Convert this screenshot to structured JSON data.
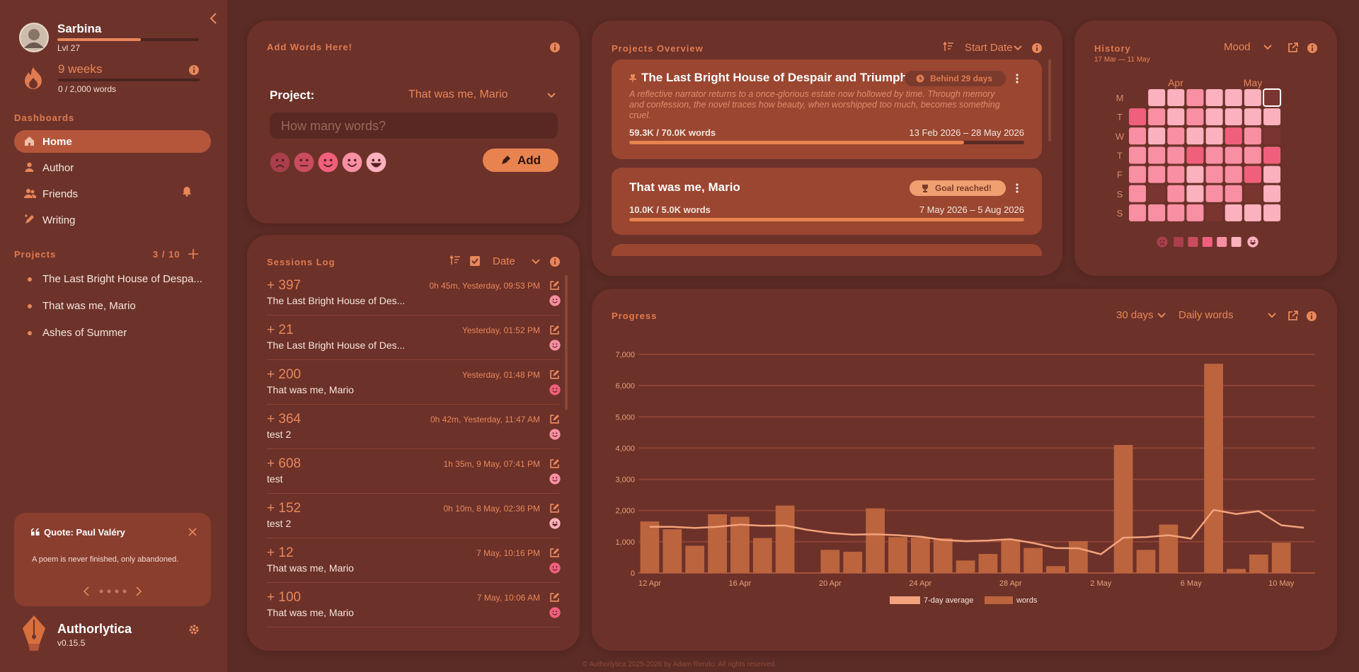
{
  "sidebar": {
    "user": {
      "name": "Sarbina",
      "level": "Lvl 27",
      "xp_progress": 59
    },
    "streak": {
      "label": "9 weeks",
      "words": "0 / 2,000 words",
      "progress": 0
    },
    "dashboards_heading": "Dashboards",
    "nav": [
      "Home",
      "Author",
      "Friends",
      "Writing"
    ],
    "projects_heading": "Projects",
    "projects_count": "3 / 10",
    "projects": [
      "The Last Bright House of Despa...",
      "That was me, Mario",
      "Ashes of Summer"
    ],
    "quote": {
      "title": "Quote: Paul Valéry",
      "text": "A poem is never finished, only abandoned."
    },
    "app": {
      "name": "Authorlytica",
      "version": "v0.15.5"
    }
  },
  "add_words": {
    "title": "Add Words Here!",
    "project_label": "Project:",
    "project": "That was me, Mario",
    "placeholder": "How many words?",
    "button": "Add"
  },
  "sessions": {
    "title": "Sessions Log",
    "sort": "Date",
    "items": [
      {
        "amount": "+ 397",
        "time": "0h 45m, Yesterday, 09:53 PM",
        "project": "The Last Bright House of Des...",
        "mood": 4
      },
      {
        "amount": "+ 21",
        "time": "Yesterday, 01:52 PM",
        "project": "The Last Bright House of Des...",
        "mood": 4
      },
      {
        "amount": "+ 200",
        "time": "Yesterday, 01:48 PM",
        "project": "That was me, Mario",
        "mood": 3
      },
      {
        "amount": "+ 364",
        "time": "0h 42m, Yesterday, 11:47 AM",
        "project": "test 2",
        "mood": 4
      },
      {
        "amount": "+ 608",
        "time": "1h 35m, 9 May, 07:41 PM",
        "project": "test",
        "mood": 4
      },
      {
        "amount": "+ 152",
        "time": "0h 10m, 8 May, 02:36 PM",
        "project": "test 2",
        "mood": 5
      },
      {
        "amount": "+ 12",
        "time": "7 May, 10:16 PM",
        "project": "That was me, Mario",
        "mood": 3
      },
      {
        "amount": "+ 100",
        "time": "7 May, 10:06 AM",
        "project": "That was me, Mario",
        "mood": 3
      }
    ]
  },
  "projects_overview": {
    "title": "Projects Overview",
    "sort": "Start Date",
    "cards": [
      {
        "title": "The Last Bright House of Despair and Triumph",
        "badge": "Behind 29 days",
        "description": "A reflective narrator returns to a once-glorious estate now hollowed by time. Through memory and confession, the novel traces how beauty, when worshipped too much, becomes something cruel.",
        "words": "59.3K / 70.0K words",
        "dates": "13 Feb 2026 – 28 May 2026",
        "progress": 84.7
      },
      {
        "title": "That was me, Mario",
        "badge": "Goal reached!",
        "words": "10.0K / 5.0K words",
        "dates": "7 May 2026 – 5 Aug 2026",
        "progress": 100
      }
    ]
  },
  "history": {
    "title": "History",
    "range": "17 Mar — 11 May",
    "metric": "Mood",
    "months": [
      "Apr",
      "May"
    ],
    "days": [
      "M",
      "T",
      "W",
      "T",
      "F",
      "S",
      "S"
    ],
    "mood_colors": [
      "#a83f4a",
      "#c94d5e",
      "#f0607c",
      "#f88fa2",
      "#fbb1be"
    ],
    "grid": [
      [
        5,
        5,
        4,
        5,
        5,
        5,
        null
      ],
      [
        3,
        4,
        5,
        4,
        5,
        5,
        5,
        5
      ],
      [
        4,
        5,
        4,
        5,
        5,
        3,
        4,
        null
      ],
      [
        4,
        4,
        4,
        3,
        4,
        4,
        4,
        3
      ],
      [
        4,
        4,
        4,
        5,
        4,
        4,
        3,
        5
      ],
      [
        4,
        null,
        4,
        5,
        4,
        4,
        null,
        5
      ],
      [
        4,
        4,
        4,
        4,
        null,
        5,
        5,
        5
      ]
    ]
  },
  "chart_data": {
    "type": "bar",
    "title": "Progress",
    "range": "30 days",
    "metric": "Daily words",
    "categories": [
      "12 Apr",
      null,
      null,
      null,
      "16 Apr",
      null,
      null,
      null,
      "20 Apr",
      null,
      null,
      null,
      "24 Apr",
      null,
      null,
      null,
      "28 Apr",
      null,
      null,
      null,
      "2 May",
      null,
      null,
      null,
      "6 May",
      null,
      null,
      null,
      "10 May",
      null
    ],
    "series": [
      {
        "name": "7-day average",
        "type": "line",
        "color": "#f2a27c",
        "values": [
          1480,
          1480,
          1440,
          1480,
          1550,
          1510,
          1520,
          1380,
          1280,
          1230,
          1240,
          1210,
          1160,
          1060,
          1020,
          1040,
          1080,
          960,
          800,
          790,
          600,
          1130,
          1150,
          1210,
          1100,
          2020,
          1890,
          1980,
          1530,
          1450
        ]
      },
      {
        "name": "words",
        "color": "#bb643d",
        "values": [
          1650,
          1400,
          870,
          1880,
          1800,
          1120,
          2160,
          0,
          740,
          680,
          2070,
          1150,
          1130,
          1110,
          400,
          610,
          1070,
          800,
          220,
          1020,
          0,
          4100,
          740,
          1550,
          0,
          6700,
          130,
          590,
          970,
          0
        ]
      }
    ],
    "ylim": [
      0,
      7000
    ],
    "yticks": [
      0,
      {
        "value": 1000,
        "label": "1,000"
      },
      {
        "value": 2000,
        "label": "2,000"
      },
      {
        "value": 3000,
        "label": "3,000"
      },
      {
        "value": 4000,
        "label": "4,000"
      },
      {
        "value": 5000,
        "label": "5,000"
      },
      {
        "value": 6000,
        "label": "6,000"
      },
      {
        "value": 7000,
        "label": "7,000"
      }
    ],
    "grid": true
  },
  "footer": "© Authorlytica 2025-2026 by Adam Rendo. All rights reserved."
}
